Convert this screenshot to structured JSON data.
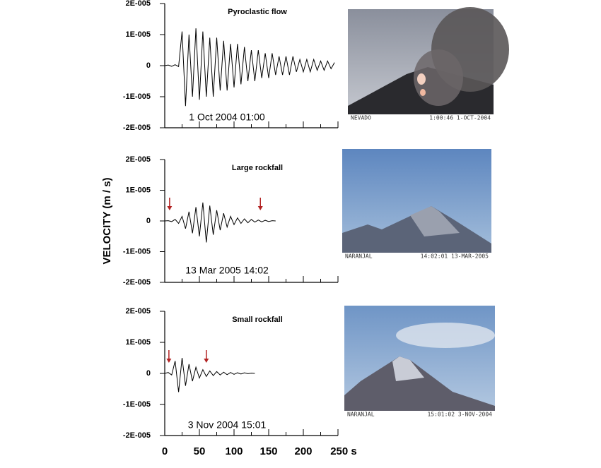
{
  "chart_data": [
    {
      "type": "line",
      "title": "Pyroclastic flow",
      "annotation": "1 Oct 2004 01:00",
      "x": [
        0,
        5,
        10,
        15,
        20,
        25,
        30,
        35,
        40,
        45,
        50,
        55,
        60,
        65,
        70,
        75,
        80,
        85,
        90,
        95,
        100,
        105,
        110,
        115,
        120,
        125,
        130,
        135,
        140,
        145,
        150,
        155,
        160,
        165,
        170,
        175,
        180,
        185,
        190,
        195,
        200,
        205,
        210,
        215,
        220,
        225,
        230,
        235,
        240,
        245
      ],
      "values": [
        0,
        2e-07,
        -2e-07,
        3e-07,
        -3e-07,
        1.1e-05,
        -1.3e-05,
        1e-05,
        -1e-05,
        1.2e-05,
        -1.1e-05,
        1.1e-05,
        -1e-05,
        9e-06,
        -1e-05,
        9e-06,
        -8e-06,
        8e-06,
        -8e-06,
        7e-06,
        -7e-06,
        7e-06,
        -6e-06,
        6e-06,
        -5e-06,
        5e-06,
        -5e-06,
        5e-06,
        -4e-06,
        4e-06,
        -4e-06,
        4e-06,
        -3e-06,
        3e-06,
        -3e-06,
        3e-06,
        -3e-06,
        3e-06,
        -2e-06,
        2e-06,
        -2e-06,
        2e-06,
        -2e-06,
        2e-06,
        -1.5e-06,
        1.5e-06,
        -1.5e-06,
        1.5e-06,
        -1e-06,
        1e-06
      ],
      "color": "#000000",
      "xlim": [
        0,
        250
      ],
      "ylim": [
        -2e-05,
        2e-05
      ],
      "xticks": [
        0,
        50,
        100,
        150,
        200,
        250
      ],
      "xminorticks": [
        25,
        75,
        125,
        175,
        225
      ],
      "yticks": [
        {
          "value": 2e-05,
          "label": "2E-005"
        },
        {
          "value": 1e-05,
          "label": "1E-005"
        },
        0,
        {
          "value": -1e-05,
          "label": "-1E-005"
        },
        {
          "value": -2e-05,
          "label": "-2E-005"
        }
      ],
      "photo_labels": [
        "NEVADO",
        "1:00:46  1-OCT-2004"
      ]
    },
    {
      "type": "line",
      "title": "Large rockfall",
      "annotation": "13 Mar 2005 14:02",
      "ylabel": "VELOCITY (m / s)",
      "x": [
        0,
        5,
        10,
        15,
        20,
        25,
        30,
        35,
        40,
        45,
        50,
        55,
        60,
        65,
        70,
        75,
        80,
        85,
        90,
        95,
        100,
        105,
        110,
        115,
        120,
        125,
        130,
        135,
        140,
        145,
        150,
        155,
        160
      ],
      "values": [
        0,
        1e-07,
        -2e-07,
        5e-07,
        -8e-07,
        1.5e-06,
        -2.5e-06,
        3e-06,
        -4e-06,
        4.5e-06,
        -5e-06,
        6e-06,
        -7e-06,
        5e-06,
        -4.5e-06,
        3.5e-06,
        -3e-06,
        2.5e-06,
        -2e-06,
        1.5e-06,
        -1.2e-06,
        1e-06,
        -8e-07,
        7e-07,
        -6e-07,
        5e-07,
        -4e-07,
        3e-07,
        -3e-07,
        2e-07,
        -2e-07,
        1e-07,
        0
      ],
      "color": "#000000",
      "arrows": [
        7,
        138
      ],
      "arrow_color": "#b22222",
      "xlim": [
        0,
        250
      ],
      "ylim": [
        -2e-05,
        2e-05
      ],
      "xticks": [
        0,
        50,
        100,
        150,
        200,
        250
      ],
      "xminorticks": [
        25,
        75,
        125,
        175,
        225
      ],
      "yticks": [
        {
          "value": 2e-05,
          "label": "2E-005"
        },
        {
          "value": 1e-05,
          "label": "1E-005"
        },
        0,
        {
          "value": -1e-05,
          "label": "-1E-005"
        },
        {
          "value": -2e-05,
          "label": "-2E-005"
        }
      ],
      "photo_labels": [
        "NARANJAL",
        "14:02:01 13-MAR-2005"
      ]
    },
    {
      "type": "line",
      "title": "Small rockfall",
      "annotation": "3 Nov 2004 15:01",
      "x": [
        0,
        5,
        10,
        15,
        20,
        25,
        30,
        35,
        40,
        45,
        50,
        55,
        60,
        65,
        70,
        75,
        80,
        85,
        90,
        95,
        100,
        105,
        110,
        115,
        120,
        125,
        130
      ],
      "values": [
        0,
        3e-07,
        -5e-07,
        4e-06,
        -6e-06,
        5e-06,
        -4e-06,
        3e-06,
        -2.5e-06,
        2e-06,
        -1.5e-06,
        1.2e-06,
        -1e-06,
        8e-07,
        -7e-07,
        6e-07,
        -5e-07,
        4e-07,
        -4e-07,
        3e-07,
        -3e-07,
        2e-07,
        -2e-07,
        2e-07,
        -1e-07,
        1e-07,
        0
      ],
      "color": "#000000",
      "arrows": [
        6,
        60
      ],
      "arrow_color": "#b22222",
      "xlim": [
        0,
        250
      ],
      "ylim": [
        -2e-05,
        2e-05
      ],
      "xticks": [
        0,
        50,
        100,
        150,
        200,
        {
          "value": 250,
          "label": "250 s"
        }
      ],
      "show_xtick_labels": true,
      "xminorticks": [
        25,
        75,
        125,
        175,
        225
      ],
      "yticks": [
        {
          "value": 2e-05,
          "label": "2E-005"
        },
        {
          "value": 1e-05,
          "label": "1E-005"
        },
        0,
        {
          "value": -1e-05,
          "label": "-1E-005"
        },
        {
          "value": -2e-05,
          "label": "-2E-005"
        }
      ],
      "photo_labels": [
        "NARANJAL",
        "15:01:02  3-NOV-2004"
      ]
    }
  ]
}
